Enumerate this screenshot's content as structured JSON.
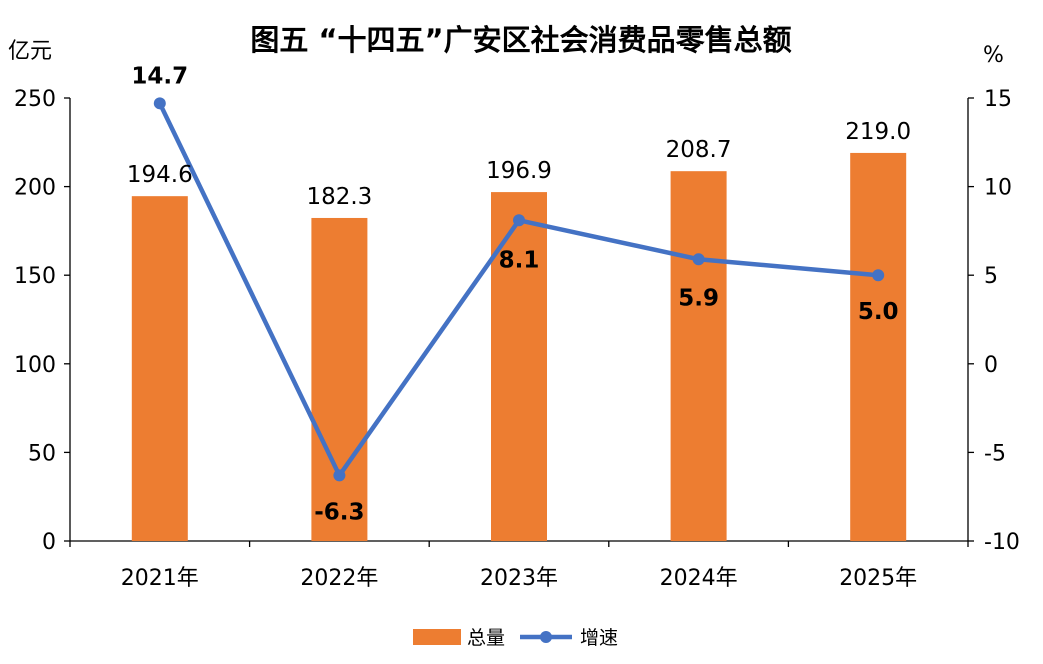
{
  "chart_data": {
    "type": "bar+line",
    "title": "图五 “十四五”广安区社会消费品零售总额",
    "categories": [
      "2021年",
      "2022年",
      "2023年",
      "2024年",
      "2025年"
    ],
    "series": [
      {
        "name": "总量",
        "type": "bar",
        "axis": "left",
        "color": "#ED7D31",
        "values": [
          194.6,
          182.3,
          196.9,
          208.7,
          219.0
        ],
        "labels": [
          "194.6",
          "182.3",
          "196.9",
          "208.7",
          "219.0"
        ]
      },
      {
        "name": "增速",
        "type": "line",
        "axis": "right",
        "color": "#4472C4",
        "values": [
          14.7,
          -6.3,
          8.1,
          5.9,
          5.0
        ],
        "labels": [
          "14.7",
          "-6.3",
          "8.1",
          "5.9",
          "5.0"
        ]
      }
    ],
    "ylabel_left": "亿元",
    "ylabel_right": "%",
    "ylim_left": [
      0,
      250
    ],
    "ylim_right": [
      -10,
      15
    ],
    "yticks_left": [
      "0",
      "50",
      "100",
      "150",
      "200",
      "250"
    ],
    "yticks_right": [
      "-10",
      "-5",
      "0",
      "5",
      "10",
      "15"
    ],
    "grid": false,
    "legend": "bottom"
  }
}
